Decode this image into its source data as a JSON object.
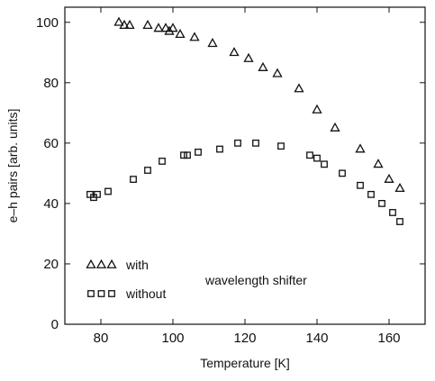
{
  "chart_data": {
    "type": "scatter",
    "xlabel": "Temperature  [K]",
    "ylabel": "e–h pairs  [arb. units]",
    "xlim": [
      70,
      170
    ],
    "ylim": [
      0,
      105
    ],
    "xticks": [
      80,
      100,
      120,
      140,
      160
    ],
    "yticks": [
      0,
      20,
      40,
      60,
      80,
      100
    ],
    "grid": false,
    "legend_position": "bottom-left",
    "annotation": "wavelength shifter",
    "series": [
      {
        "name": "with",
        "marker": "triangle",
        "x": [
          85,
          86.5,
          88,
          93,
          96,
          98,
          99,
          100,
          102,
          106,
          111,
          117,
          121,
          125,
          129,
          135,
          140,
          145,
          152,
          157,
          160,
          163
        ],
        "y": [
          100,
          99,
          99,
          99,
          98,
          98,
          97,
          98,
          96,
          95,
          93,
          90,
          88,
          85,
          83,
          78,
          71,
          65,
          58,
          53,
          48,
          45
        ]
      },
      {
        "name": "without",
        "marker": "square",
        "x": [
          77,
          78,
          79,
          82,
          89,
          93,
          97,
          103,
          104,
          107,
          113,
          118,
          123,
          130,
          138,
          140,
          142,
          147,
          152,
          155,
          158,
          161,
          163
        ],
        "y": [
          43,
          42,
          43,
          44,
          48,
          51,
          54,
          56,
          56,
          57,
          58,
          60,
          60,
          59,
          56,
          55,
          53,
          50,
          46,
          43,
          40,
          37,
          34
        ]
      }
    ]
  }
}
